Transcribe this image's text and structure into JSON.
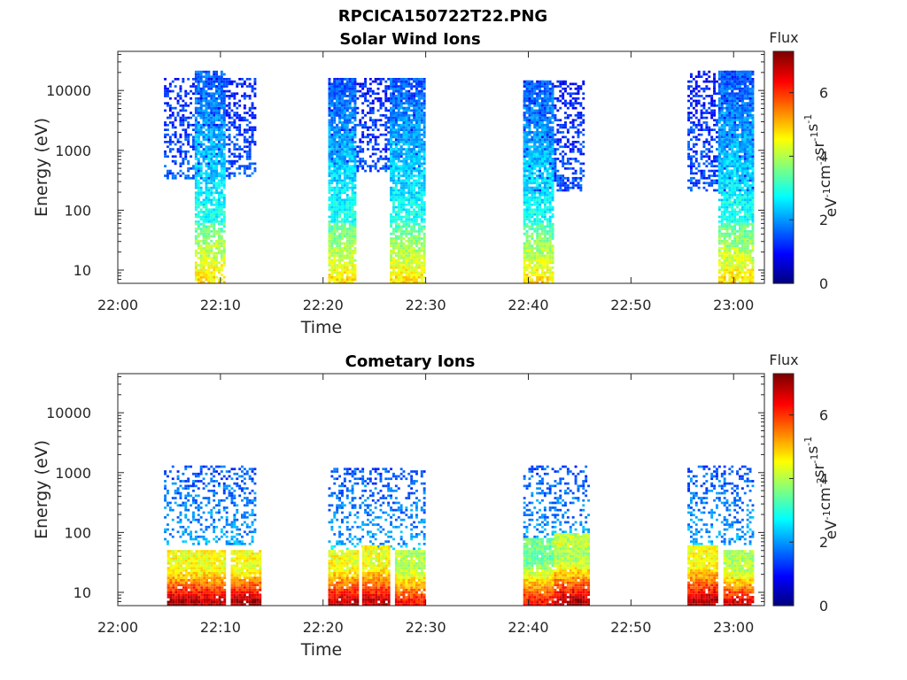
{
  "figure_title": "RPCICA150722T22.PNG",
  "colorbar": {
    "label": "Flux",
    "unit_base": "eV",
    "unit_parts": [
      {
        "t": "eV",
        "sup": "-1"
      },
      {
        "t": "cm",
        "sup": "-2"
      },
      {
        "t": "sr",
        "sup": "-1"
      },
      {
        "t": "s",
        "sup": "-1"
      }
    ],
    "ticks": [
      "0",
      "2",
      "4",
      "6"
    ],
    "range": [
      0,
      7.3
    ],
    "colormap": "jet"
  },
  "chart_data": [
    {
      "type": "heatmap",
      "title": "Solar Wind Ions",
      "xlabel": "Time",
      "ylabel": "Energy (eV)",
      "xlim": [
        "22:00",
        "23:03"
      ],
      "ylim": [
        6,
        45000
      ],
      "yscale": "log",
      "xticks": [
        "22:00",
        "22:10",
        "22:20",
        "22:30",
        "22:40",
        "22:50",
        "23:00"
      ],
      "yticks": [
        "10",
        "100",
        "1000",
        "10000"
      ],
      "color_value_range": [
        0,
        7.3
      ],
      "series": [
        {
          "start_min": 4.5,
          "end_min": 13.5,
          "emin": 300,
          "emax": 15000,
          "density": 0.42,
          "flux_low": 1.1,
          "flux_high": 1.8
        },
        {
          "start_min": 7.5,
          "end_min": 10.5,
          "emin": 6,
          "emax": 20000,
          "density": 0.8,
          "flux_low": 1.5,
          "flux_high": 4.8
        },
        {
          "start_min": 20.5,
          "end_min": 29.5,
          "emin": 400,
          "emax": 16000,
          "density": 0.45,
          "flux_low": 1.0,
          "flux_high": 1.8
        },
        {
          "start_min": 20.5,
          "end_min": 23.2,
          "emin": 6,
          "emax": 16000,
          "density": 0.85,
          "flux_low": 1.5,
          "flux_high": 4.8
        },
        {
          "start_min": 26.5,
          "end_min": 29.8,
          "emin": 6,
          "emax": 16000,
          "density": 0.85,
          "flux_low": 1.5,
          "flux_high": 4.8
        },
        {
          "start_min": 39.5,
          "end_min": 45.5,
          "emin": 200,
          "emax": 14000,
          "density": 0.45,
          "flux_low": 1.0,
          "flux_high": 1.8
        },
        {
          "start_min": 39.5,
          "end_min": 42.5,
          "emin": 6,
          "emax": 14000,
          "density": 0.85,
          "flux_low": 1.5,
          "flux_high": 4.8
        },
        {
          "start_min": 55.5,
          "end_min": 62.0,
          "emin": 200,
          "emax": 20000,
          "density": 0.45,
          "flux_low": 1.0,
          "flux_high": 1.8
        },
        {
          "start_min": 58.5,
          "end_min": 62.0,
          "emin": 6,
          "emax": 20000,
          "density": 0.85,
          "flux_low": 1.5,
          "flux_high": 4.8
        }
      ]
    },
    {
      "type": "heatmap",
      "title": "Cometary Ions",
      "xlabel": "Time",
      "ylabel": "Energy (eV)",
      "xlim": [
        "22:00",
        "23:03"
      ],
      "ylim": [
        6,
        45000
      ],
      "yscale": "log",
      "xticks": [
        "22:00",
        "22:10",
        "22:20",
        "22:30",
        "22:40",
        "22:50",
        "23:00"
      ],
      "yticks": [
        "10",
        "100",
        "1000",
        "10000"
      ],
      "color_value_range": [
        0,
        7.3
      ],
      "series": [
        {
          "start_min": 4.5,
          "end_min": 13.5,
          "emin": 60,
          "emax": 1200,
          "density": 0.35,
          "flux_low": 1.5,
          "flux_high": 2.5
        },
        {
          "start_min": 4.8,
          "end_min": 7.8,
          "emin": 6,
          "emax": 50,
          "density": 0.95,
          "flux_low": 4.5,
          "flux_high": 7.2
        },
        {
          "start_min": 7.8,
          "end_min": 10.5,
          "emin": 6,
          "emax": 50,
          "density": 0.95,
          "flux_low": 4.5,
          "flux_high": 7.0
        },
        {
          "start_min": 11.0,
          "end_min": 13.8,
          "emin": 6,
          "emax": 50,
          "density": 0.95,
          "flux_low": 4.5,
          "flux_high": 7.2
        },
        {
          "start_min": 20.5,
          "end_min": 30.0,
          "emin": 50,
          "emax": 1100,
          "density": 0.3,
          "flux_low": 1.5,
          "flux_high": 2.5
        },
        {
          "start_min": 20.5,
          "end_min": 23.3,
          "emin": 6,
          "emax": 50,
          "density": 0.95,
          "flux_low": 4.5,
          "flux_high": 7.0
        },
        {
          "start_min": 23.8,
          "end_min": 26.5,
          "emin": 6,
          "emax": 60,
          "density": 0.95,
          "flux_low": 4.5,
          "flux_high": 7.0
        },
        {
          "start_min": 27.0,
          "end_min": 29.8,
          "emin": 6,
          "emax": 50,
          "density": 0.95,
          "flux_low": 4.0,
          "flux_high": 6.5
        },
        {
          "start_min": 39.5,
          "end_min": 45.8,
          "emin": 50,
          "emax": 1200,
          "density": 0.3,
          "flux_low": 1.5,
          "flux_high": 2.5
        },
        {
          "start_min": 39.5,
          "end_min": 42.5,
          "emin": 6,
          "emax": 80,
          "density": 0.95,
          "flux_low": 3.5,
          "flux_high": 6.5
        },
        {
          "start_min": 42.5,
          "end_min": 45.8,
          "emin": 6,
          "emax": 90,
          "density": 0.95,
          "flux_low": 4.0,
          "flux_high": 7.2
        },
        {
          "start_min": 55.5,
          "end_min": 62.0,
          "emin": 60,
          "emax": 1200,
          "density": 0.3,
          "flux_low": 1.5,
          "flux_high": 2.5
        },
        {
          "start_min": 55.5,
          "end_min": 58.5,
          "emin": 6,
          "emax": 60,
          "density": 0.95,
          "flux_low": 4.5,
          "flux_high": 7.2
        },
        {
          "start_min": 59.0,
          "end_min": 62.0,
          "emin": 6,
          "emax": 50,
          "density": 0.95,
          "flux_low": 4.0,
          "flux_high": 6.8
        }
      ]
    }
  ]
}
